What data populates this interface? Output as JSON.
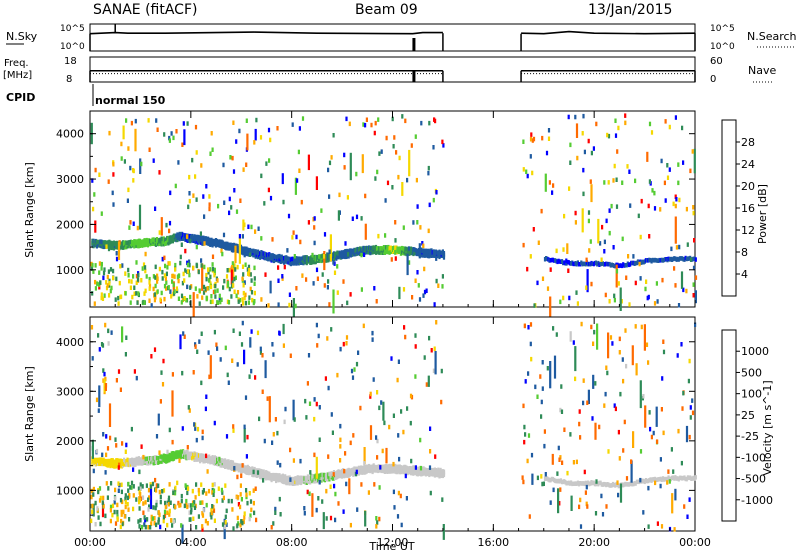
{
  "header": {
    "site": "SANAE (fitACF)",
    "beam": "Beam 09",
    "date": "13/Jan/2015"
  },
  "top_panels": {
    "nsky_label": "N.Sky",
    "nsearch_label": "N.Search",
    "nsky_ticks": [
      "10^5",
      "10^0"
    ],
    "nsearch_ticks": [
      "10^5",
      "10^0"
    ],
    "freq_label": "Freq.",
    "freq_unit": "[MHz]",
    "freq_ticks": [
      "18",
      "8"
    ],
    "nave_label": "Nave",
    "nave_ticks": [
      "60",
      "0"
    ],
    "cpid_label": "CPID",
    "cpid_value": "normal 150"
  },
  "axes": {
    "xlabel": "Time UT",
    "ylabel": "Slant Range [km]",
    "xticks": [
      "00:00",
      "04:00",
      "08:00",
      "12:00",
      "16:00",
      "20:00",
      "00:00"
    ],
    "yticks": [
      "1000",
      "2000",
      "3000",
      "4000"
    ]
  },
  "colorbars": {
    "power": {
      "label": "Power [dB]",
      "ticks": [
        "28",
        "24",
        "20",
        "16",
        "12",
        "8",
        "4"
      ],
      "colors": [
        "#ff0000",
        "#ff6a00",
        "#ffaa00",
        "#f5d800",
        "#55cc33",
        "#2e8b57",
        "#1e5aa0",
        "#0000ff"
      ]
    },
    "velocity": {
      "label": "Velocity [m s^-1]",
      "ticks": [
        "1000",
        "500",
        "100",
        "25",
        "-25",
        "-100",
        "-500",
        "-1000"
      ],
      "colors": [
        "#0000ff",
        "#1e5aa0",
        "#2e8b57",
        "#55cc33",
        "#c8c8c8",
        "#f5d800",
        "#ffaa00",
        "#ff6a00",
        "#ff0000"
      ]
    }
  },
  "chart_data": [
    {
      "type": "line",
      "title": "N.Sky / N.Search",
      "x_unit": "hours UT",
      "xlim": [
        0,
        24
      ],
      "data_gap_hours": [
        14.0,
        17.1
      ],
      "series": [
        {
          "name": "N.Sky",
          "x": [
            0.0,
            1.0,
            1.5,
            3.0,
            6.5,
            9.0,
            12.8,
            13.2,
            14.0
          ],
          "y": [
            3.2,
            3.4,
            3.3,
            3.3,
            3.5,
            3.3,
            3.2,
            3.4,
            3.4
          ]
        },
        {
          "name": "N.Sky",
          "x": [
            17.1,
            18.0,
            19.0,
            20.0,
            22.0,
            24.0
          ],
          "y": [
            3.3,
            3.2,
            3.6,
            3.3,
            3.2,
            3.3
          ]
        }
      ]
    },
    {
      "type": "line",
      "title": "Freq. / Nave",
      "x_unit": "hours UT",
      "xlim": [
        0,
        24
      ],
      "freq_mhz": 12.5,
      "nave": 20,
      "data_gap_hours": [
        14.0,
        17.1
      ]
    },
    {
      "type": "heatmap",
      "title": "Power [dB]",
      "x_unit": "hours UT",
      "y_unit": "km",
      "xlim": [
        0,
        24
      ],
      "ylim": [
        180,
        4500
      ],
      "clim": [
        0,
        30
      ],
      "data_gap_hours": [
        14.0,
        17.1
      ],
      "main_echo_band": {
        "x": [
          0.0,
          1.0,
          2.0,
          3.0,
          3.5,
          4.0,
          5.0,
          6.0,
          7.0,
          8.0,
          9.0,
          10.0,
          11.0,
          12.0,
          13.0,
          14.0,
          18.0,
          19.0,
          20.0,
          21.0,
          22.0,
          23.0
        ],
        "y": [
          1650,
          1600,
          1650,
          1700,
          1800,
          1750,
          1650,
          1500,
          1350,
          1250,
          1300,
          1400,
          1500,
          1500,
          1450,
          1400,
          1350,
          1250,
          1250,
          1200,
          1300,
          1350
        ],
        "power_db": [
          8,
          10,
          14,
          12,
          6,
          5,
          6,
          6,
          5,
          5,
          12,
          6,
          8,
          16,
          6,
          5,
          4,
          4,
          4,
          4,
          5,
          5
        ]
      }
    },
    {
      "type": "heatmap",
      "title": "Velocity [m s^-1]",
      "x_unit": "hours UT",
      "y_unit": "km",
      "xlim": [
        0,
        24
      ],
      "ylim": [
        180,
        4500
      ],
      "clim": [
        -1000,
        1000
      ],
      "data_gap_hours": [
        14.0,
        17.1
      ],
      "main_echo_band": {
        "x": [
          0.0,
          1.0,
          2.0,
          3.0,
          3.5,
          4.0,
          5.0,
          6.0,
          7.0,
          8.0,
          9.0,
          10.0,
          11.0,
          12.0,
          13.0,
          14.0,
          18.0,
          19.0,
          20.0,
          21.0,
          22.0,
          23.0
        ],
        "y": [
          1650,
          1600,
          1650,
          1700,
          1800,
          1750,
          1650,
          1500,
          1350,
          1250,
          1300,
          1400,
          1500,
          1500,
          1450,
          1400,
          1350,
          1250,
          1250,
          1200,
          1300,
          1350
        ],
        "velocity": [
          -30,
          -60,
          20,
          40,
          60,
          -20,
          10,
          5,
          0,
          -10,
          30,
          5,
          0,
          -5,
          0,
          0,
          0,
          0,
          0,
          0,
          0,
          0
        ]
      }
    }
  ]
}
